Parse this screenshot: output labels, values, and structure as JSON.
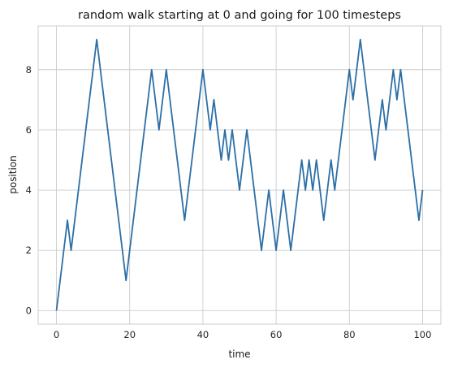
{
  "chart_data": {
    "type": "line",
    "title": "random walk starting at 0 and going for 100 timesteps",
    "xlabel": "time",
    "ylabel": "position",
    "xlim": [
      -5,
      105
    ],
    "ylim": [
      -0.45,
      9.45
    ],
    "xticks": [
      0,
      20,
      40,
      60,
      80,
      100
    ],
    "yticks": [
      0,
      2,
      4,
      6,
      8
    ],
    "grid": true,
    "legend": "none",
    "colors": {
      "line": "#2c6fa6",
      "grid": "#cccccc",
      "frame": "#cccccc",
      "text": "#262626"
    },
    "series": [
      {
        "x": [
          0,
          1,
          2,
          3,
          4,
          5,
          6,
          7,
          8,
          9,
          10,
          11,
          12,
          13,
          14,
          15,
          16,
          17,
          18,
          19,
          20,
          21,
          22,
          23,
          24,
          25,
          26,
          27,
          28,
          29,
          30,
          31,
          32,
          33,
          34,
          35,
          36,
          37,
          38,
          39,
          40,
          41,
          42,
          43,
          44,
          45,
          46,
          47,
          48,
          49,
          50,
          51,
          52,
          53,
          54,
          55,
          56,
          57,
          58,
          59,
          60,
          61,
          62,
          63,
          64,
          65,
          66,
          67,
          68,
          69,
          70,
          71,
          72,
          73,
          74,
          75,
          76,
          77,
          78,
          79,
          80,
          81,
          82,
          83,
          84,
          85,
          86,
          87,
          88,
          89,
          90,
          91,
          92,
          93,
          94,
          95,
          96,
          97,
          98,
          99,
          100
        ],
        "y": [
          0,
          1,
          2,
          3,
          2,
          3,
          4,
          5,
          6,
          7,
          8,
          9,
          8,
          7,
          6,
          5,
          4,
          3,
          2,
          1,
          2,
          3,
          4,
          5,
          6,
          7,
          8,
          7,
          6,
          7,
          8,
          7,
          6,
          5,
          4,
          3,
          4,
          5,
          6,
          7,
          8,
          7,
          6,
          7,
          6,
          5,
          6,
          5,
          6,
          5,
          4,
          5,
          6,
          5,
          4,
          3,
          2,
          3,
          4,
          3,
          2,
          3,
          4,
          3,
          2,
          3,
          4,
          5,
          4,
          5,
          4,
          5,
          4,
          3,
          4,
          5,
          4,
          5,
          6,
          7,
          8,
          7,
          8,
          9,
          8,
          7,
          6,
          5,
          6,
          7,
          6,
          7,
          8,
          7,
          8,
          7,
          6,
          5,
          4,
          3,
          4
        ]
      }
    ]
  }
}
